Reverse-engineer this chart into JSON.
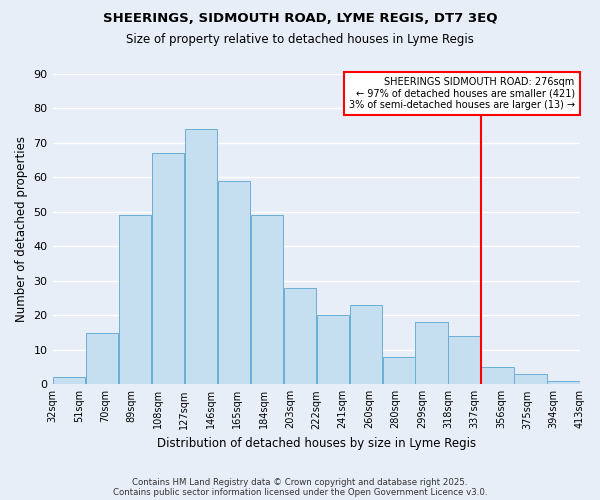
{
  "title": "SHEERINGS, SIDMOUTH ROAD, LYME REGIS, DT7 3EQ",
  "subtitle": "Size of property relative to detached houses in Lyme Regis",
  "xlabel": "Distribution of detached houses by size in Lyme Regis",
  "ylabel": "Number of detached properties",
  "bar_values": [
    2,
    15,
    49,
    67,
    74,
    59,
    49,
    28,
    20,
    23,
    8,
    18,
    14,
    5,
    3,
    1
  ],
  "bar_centers": [
    0,
    1,
    2,
    3,
    4,
    5,
    6,
    7,
    8,
    9,
    10,
    11,
    12,
    14,
    16,
    18
  ],
  "xtick_positions": [
    0,
    1,
    2,
    3,
    4,
    5,
    6,
    7,
    8,
    9,
    10,
    11,
    12,
    13,
    14,
    15,
    16,
    17,
    18,
    19,
    20
  ],
  "xtick_labels": [
    "32sqm",
    "51sqm",
    "70sqm",
    "89sqm",
    "108sqm",
    "127sqm",
    "146sqm",
    "165sqm",
    "184sqm",
    "203sqm",
    "222sqm",
    "241sqm",
    "260sqm",
    "280sqm",
    "299sqm",
    "318sqm",
    "337sqm",
    "356sqm",
    "375sqm",
    "394sqm",
    "413sqm"
  ],
  "bar_color": "#c5dff0",
  "bar_edge_color": "#6baed6",
  "background_color": "#e8eef8",
  "grid_color": "#ffffff",
  "vline_x": 13,
  "vline_color": "red",
  "legend_title": "SHEERINGS SIDMOUTH ROAD: 276sqm",
  "legend_line1": "← 97% of detached houses are smaller (421)",
  "legend_line2": "3% of semi-detached houses are larger (13) →",
  "ylim": [
    0,
    90
  ],
  "yticks": [
    0,
    10,
    20,
    30,
    40,
    50,
    60,
    70,
    80,
    90
  ],
  "footnote1": "Contains HM Land Registry data © Crown copyright and database right 2025.",
  "footnote2": "Contains public sector information licensed under the Open Government Licence v3.0."
}
